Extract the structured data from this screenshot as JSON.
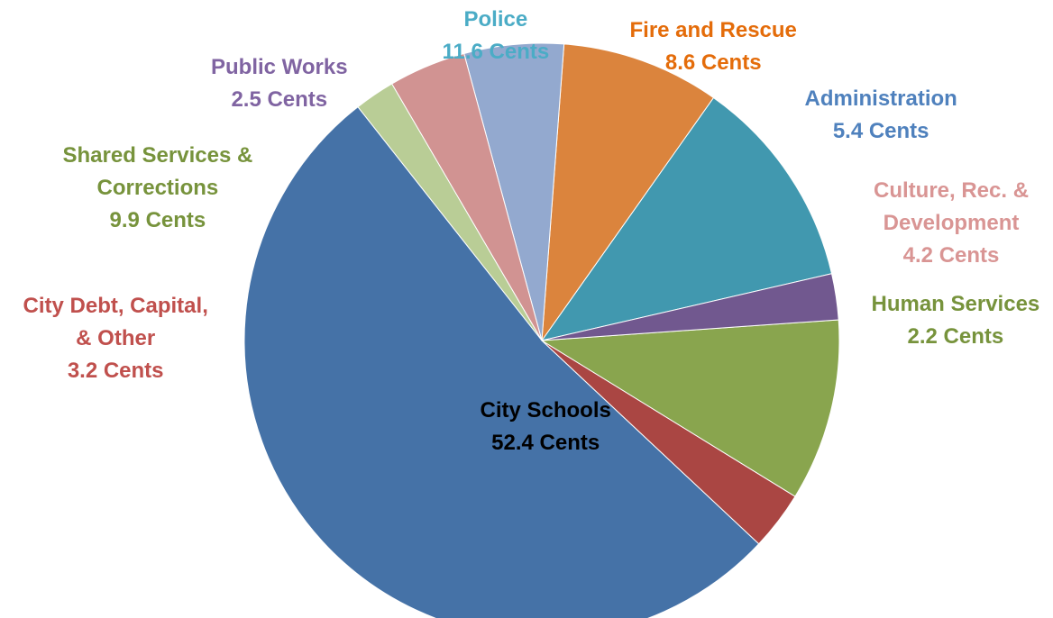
{
  "chart_data": {
    "type": "pie",
    "unit": "Cents",
    "slices": [
      {
        "name": "Police",
        "value_text": "11.6 Cents",
        "value": 11.6,
        "color": "#4198AF",
        "label_color": "#4BACC6"
      },
      {
        "name": "Fire and Rescue",
        "value_text": "8.6 Cents",
        "value": 8.6,
        "color": "#DB843D",
        "label_color": "#E46C0A"
      },
      {
        "name": "Administration",
        "value_text": "5.4 Cents",
        "value": 5.4,
        "color": "#93A9CF",
        "label_color": "#4F81BD"
      },
      {
        "name": "Culture, Rec. & Development",
        "name_lines": [
          "Culture, Rec. &",
          "Development"
        ],
        "value_text": "4.2 Cents",
        "value": 4.2,
        "color": "#D19392",
        "label_color": "#D99594"
      },
      {
        "name": "Human Services",
        "value_text": "2.2 Cents",
        "value": 2.2,
        "color": "#B9CD96",
        "label_color": "#77933C"
      },
      {
        "name": "City Schools",
        "value_text": "52.4 Cents",
        "value": 52.4,
        "color": "#4572A7",
        "label_color": "#000000"
      },
      {
        "name": "City Debt, Capital, & Other",
        "name_lines": [
          "City Debt, Capital,",
          "& Other"
        ],
        "value_text": "3.2 Cents",
        "value": 3.2,
        "color": "#AA4643",
        "label_color": "#C0504D"
      },
      {
        "name": "Shared Services & Corrections",
        "name_lines": [
          "Shared Services &",
          "Corrections"
        ],
        "value_text": "9.9 Cents",
        "value": 9.9,
        "color": "#89A54E",
        "label_color": "#77933C"
      },
      {
        "name": "Public Works",
        "value_text": "2.5 Cents",
        "value": 2.5,
        "color": "#71588F",
        "label_color": "#8064A2"
      }
    ]
  }
}
